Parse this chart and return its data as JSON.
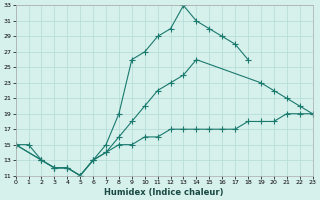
{
  "xlabel": "Humidex (Indice chaleur)",
  "bg_color": "#d6f0ec",
  "grid_color": "#b8ddd8",
  "line_color": "#1a7a6e",
  "xlim": [
    0,
    23
  ],
  "ylim": [
    11,
    33
  ],
  "xticks": [
    0,
    1,
    2,
    3,
    4,
    5,
    6,
    7,
    8,
    9,
    10,
    11,
    12,
    13,
    14,
    15,
    16,
    17,
    18,
    19,
    20,
    21,
    22,
    23
  ],
  "yticks": [
    11,
    13,
    15,
    17,
    19,
    21,
    23,
    25,
    27,
    29,
    31,
    33
  ],
  "curve1_x": [
    0,
    1,
    2,
    3,
    4,
    5,
    6,
    7,
    8,
    9,
    10,
    11,
    12,
    13,
    14,
    15,
    16,
    17,
    18
  ],
  "curve1_y": [
    15,
    15,
    13,
    12,
    12,
    11,
    13,
    15,
    19,
    26,
    27,
    29,
    30,
    33,
    31,
    30,
    29,
    28,
    26
  ],
  "curve2_x": [
    0,
    2,
    3,
    4,
    5,
    6,
    7,
    8,
    9,
    10,
    11,
    12,
    13,
    14,
    19,
    20,
    21,
    22,
    23
  ],
  "curve2_y": [
    15,
    13,
    12,
    12,
    11,
    13,
    14,
    16,
    18,
    20,
    22,
    23,
    24,
    26,
    23,
    22,
    21,
    20,
    19
  ],
  "curve3_x": [
    0,
    2,
    3,
    4,
    5,
    6,
    7,
    8,
    9,
    10,
    11,
    12,
    13,
    14,
    15,
    16,
    17,
    18,
    19,
    20,
    21,
    22,
    23
  ],
  "curve3_y": [
    15,
    13,
    12,
    12,
    11,
    13,
    14,
    15,
    15,
    16,
    16,
    17,
    17,
    17,
    17,
    17,
    17,
    18,
    18,
    18,
    19,
    19,
    19
  ]
}
